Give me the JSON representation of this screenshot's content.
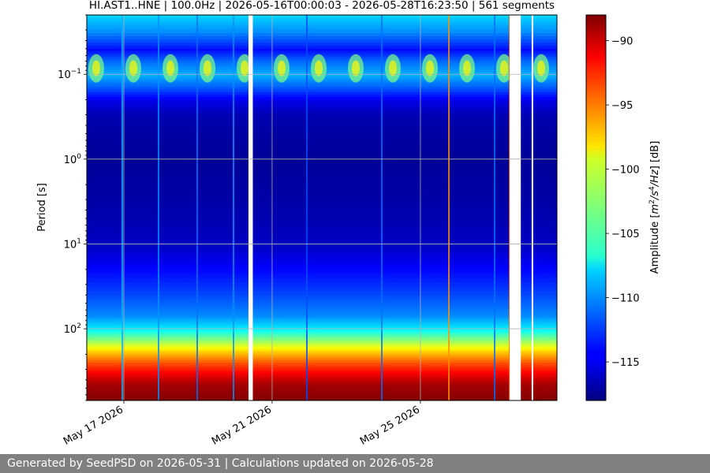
{
  "chart_data": {
    "type": "heatmap",
    "title": "HI.AST1..HNE | 100.0Hz | 2026-05-16T00:00:03 - 2026-05-28T16:23:50 | 561 segments",
    "ylabel": "Period [s]",
    "y_scale": "log",
    "y_inverted": true,
    "ylim": [
      0.02,
      700
    ],
    "y_ticks": [
      {
        "value": 0.1,
        "base": "10",
        "exp": "−1"
      },
      {
        "value": 1,
        "base": "10",
        "exp": "0"
      },
      {
        "value": 10,
        "base": "10",
        "exp": "1"
      },
      {
        "value": 100,
        "base": "10",
        "exp": "2"
      }
    ],
    "xlim": [
      "2026-05-16T00:00:03",
      "2026-05-28T16:23:50"
    ],
    "x_ticks": [
      {
        "value": "2026-05-17",
        "label": "May 17 2026"
      },
      {
        "value": "2026-05-21",
        "label": "May 21 2026"
      },
      {
        "value": "2026-05-25",
        "label": "May 25 2026"
      }
    ],
    "colorbar": {
      "label_prefix": "Amplitude [",
      "label_unit": "m",
      "label_sup1": "2",
      "label_mid": "/s",
      "label_sup2": "4",
      "label_end": "/Hz",
      "label_suffix": "] [dB]",
      "colormap": "jet",
      "vmin": -118,
      "vmax": -88,
      "ticks": [
        {
          "value": -90,
          "label": "−90"
        },
        {
          "value": -95,
          "label": "−95"
        },
        {
          "value": -100,
          "label": "−100"
        },
        {
          "value": -105,
          "label": "−105"
        },
        {
          "value": -110,
          "label": "−110"
        },
        {
          "value": -115,
          "label": "−115"
        }
      ]
    },
    "data_gaps": [
      {
        "start": "2026-05-20T08:40:00",
        "end": "2026-05-20T11:30:00"
      },
      {
        "start": "2026-05-27T09:50:00",
        "end": "2026-05-27T17:00:00"
      },
      {
        "start": "2026-05-28T00:00:00",
        "end": "2026-05-28T00:40:00"
      }
    ],
    "grid": true
  },
  "footer": {
    "text": "Generated by SeedPSD on 2026-05-31 | Calculations updated on 2026-05-28"
  }
}
